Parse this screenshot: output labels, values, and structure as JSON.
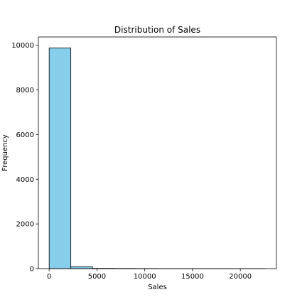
{
  "chart_data": {
    "type": "bar",
    "title": "Distribution of Sales",
    "xlabel": "Sales",
    "ylabel": "Frequency",
    "bin_edges": [
      0,
      2265,
      4530,
      6795,
      9060,
      11325,
      13590,
      15855,
      18120,
      20385,
      22650
    ],
    "values": [
      9880,
      85,
      12,
      8,
      5,
      3,
      2,
      1,
      1,
      1
    ],
    "xlim": [
      -1130,
      23780
    ],
    "ylim": [
      0,
      10370
    ],
    "xticks": [
      0,
      5000,
      10000,
      15000,
      20000
    ],
    "yticks": [
      0,
      2000,
      4000,
      6000,
      8000,
      10000
    ],
    "bar_color": "#87ceeb",
    "edge_color": "#000000",
    "grid": false,
    "legend": false
  }
}
